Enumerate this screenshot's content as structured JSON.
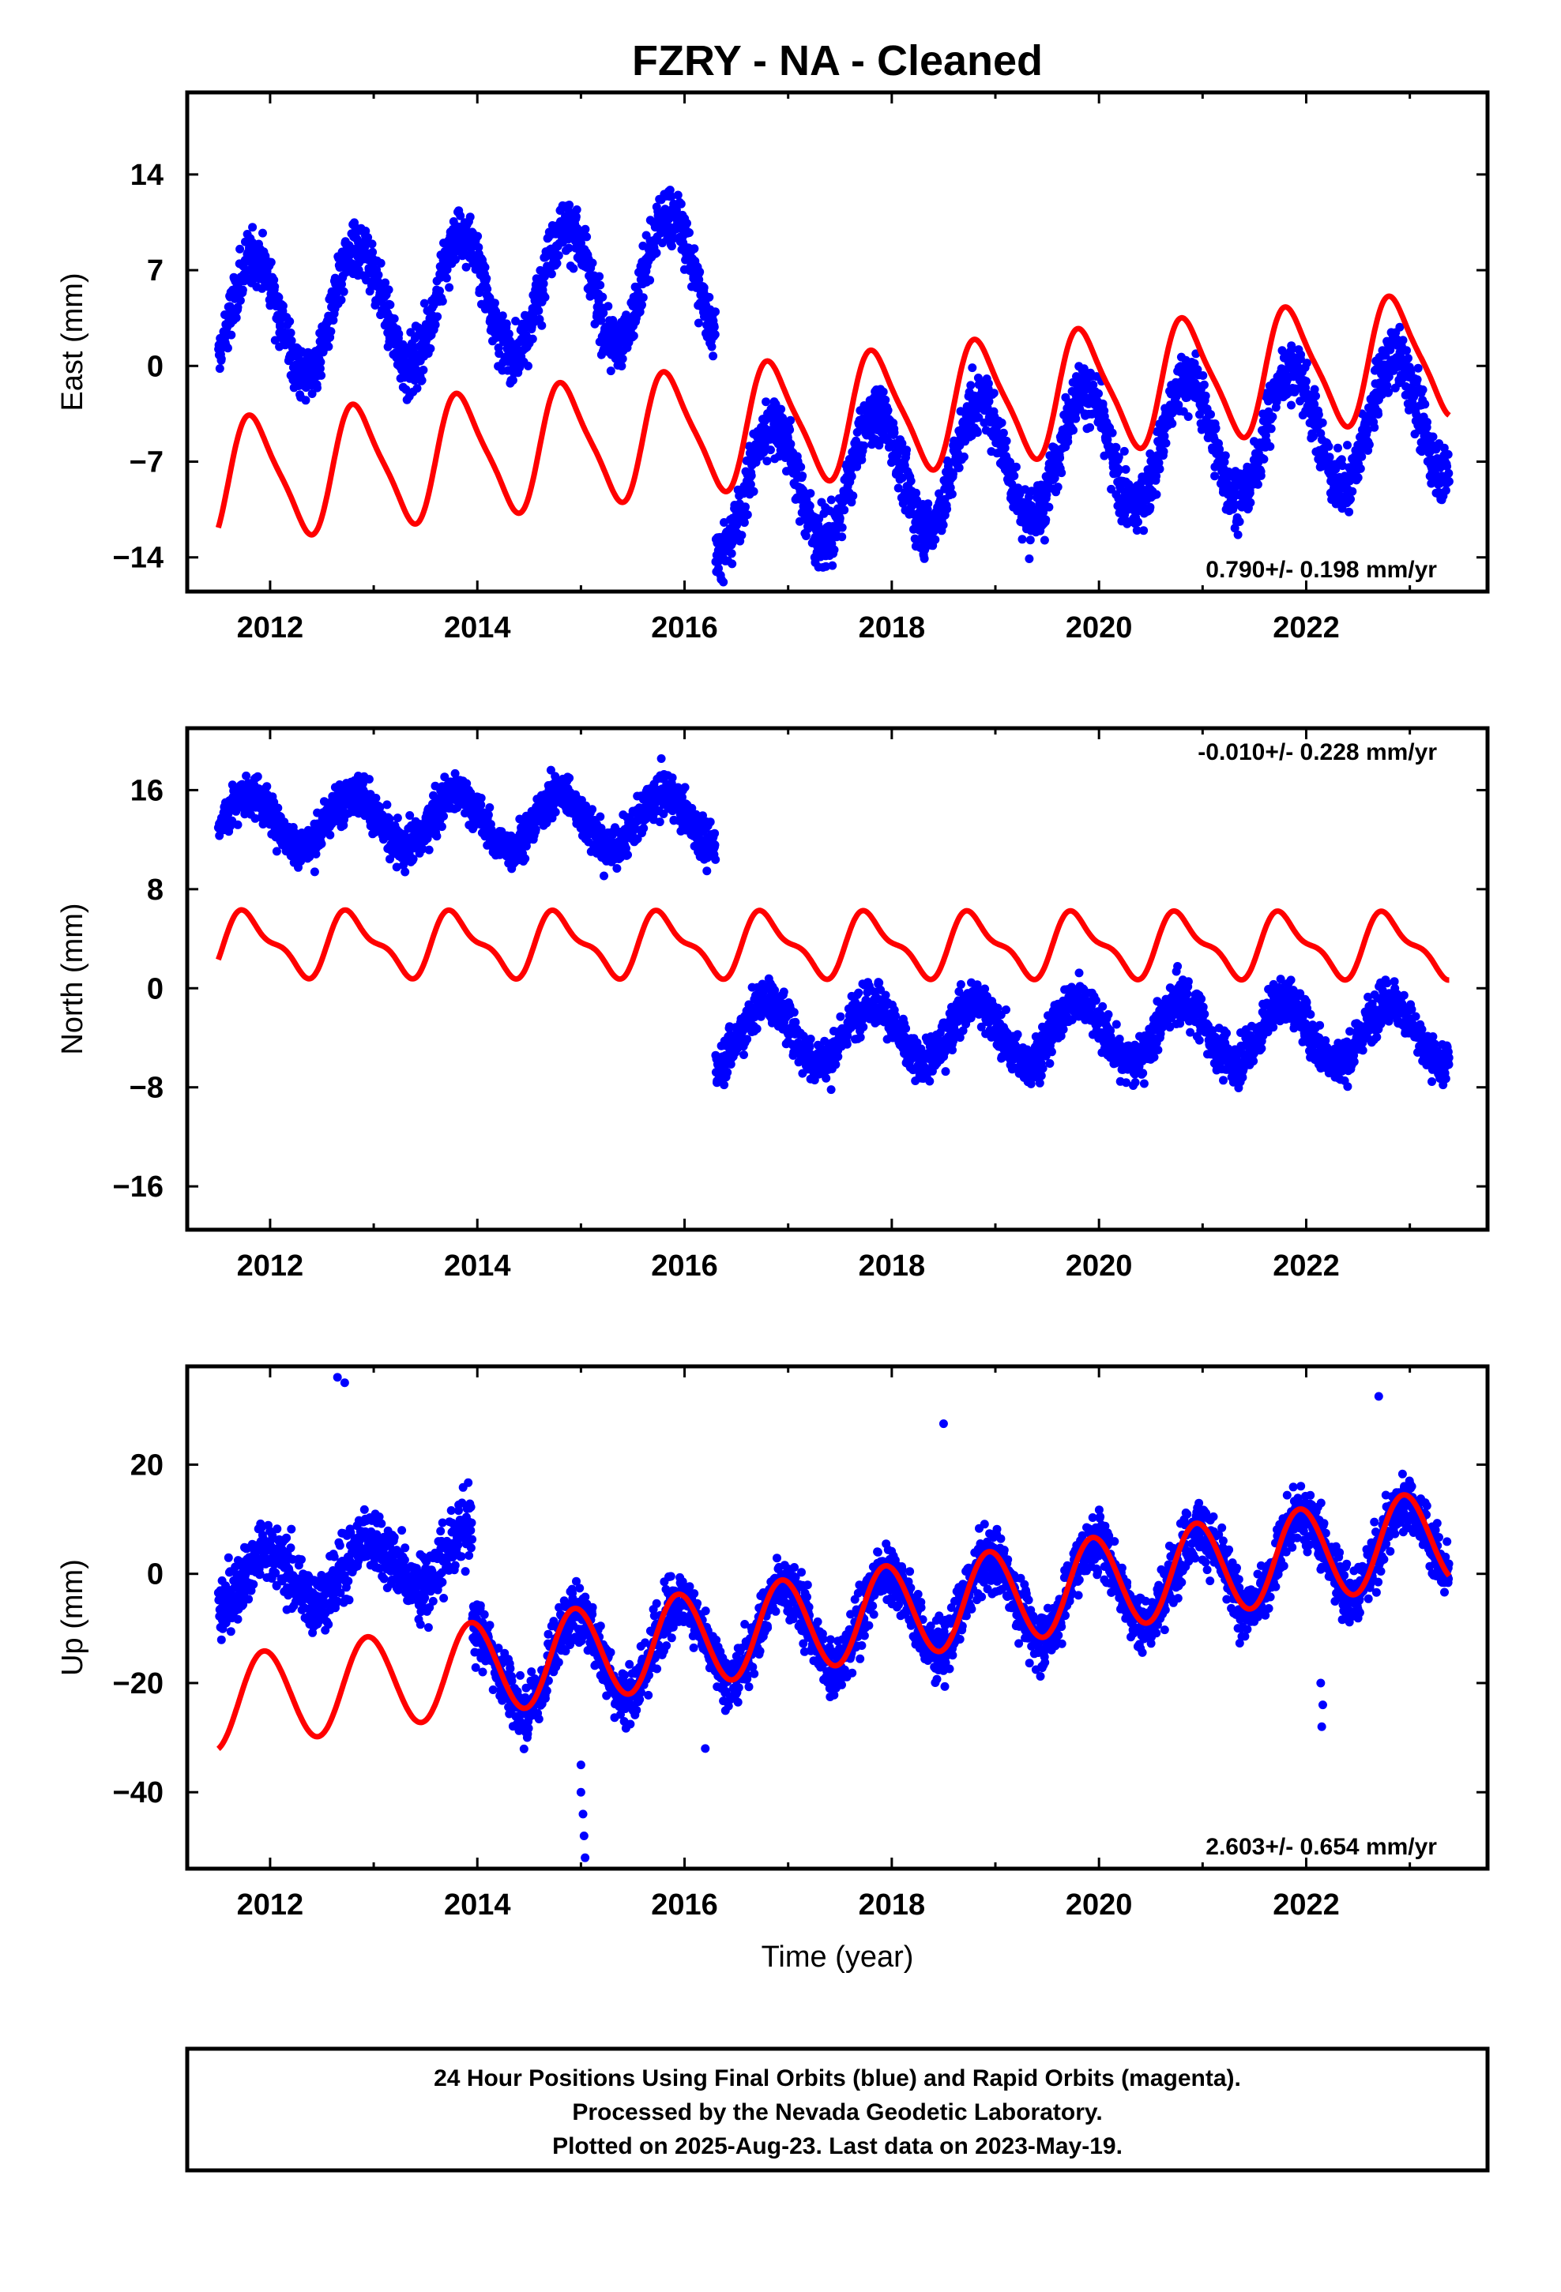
{
  "title": "FZRY  - NA - Cleaned",
  "xlabel": "Time (year)",
  "footer": {
    "line1": "24 Hour Positions Using Final Orbits (blue) and Rapid Orbits (magenta).",
    "line2": "Processed by the Nevada Geodetic Laboratory.",
    "line3": "Plotted on 2025-Aug-23. Last data on 2023-May-19."
  },
  "colors": {
    "observations": "#0000ff",
    "model": "#ff0000",
    "frame": "#000000"
  },
  "chart_data": [
    {
      "type": "scatter",
      "panel": "east",
      "ylabel": "East (mm)",
      "rate_text": "0.790+/- 0.198 mm/yr",
      "rate_position": "bottom-right",
      "xlim": [
        2011.2,
        2023.75
      ],
      "ylim": [
        -16.5,
        20
      ],
      "xticks": [
        2012,
        2014,
        2016,
        2018,
        2020,
        2022
      ],
      "yticks": [
        -14,
        -7,
        0,
        7,
        14
      ],
      "ytick_labels": [
        "−14",
        "−7",
        "0",
        "7",
        "14"
      ],
      "data_start": 2011.5,
      "data_end": 2023.38,
      "series": [
        {
          "name": "observations",
          "segments": [
            {
              "from": 2011.5,
              "to": 2016.3,
              "offset": 7.5,
              "amplitude": 4.5,
              "phase_year": 0.6,
              "trend": 0.79,
              "noise": 1.6
            },
            {
              "from": 2016.3,
              "to": 2023.38,
              "offset": -8.5,
              "amplitude": 4.5,
              "phase_year": 0.6,
              "trend": 0.79,
              "noise": 1.6
            }
          ]
        },
        {
          "name": "model",
          "segments": [
            {
              "from": 2011.5,
              "to": 2023.38,
              "offset": -4.1,
              "amplitude": 4.3,
              "phase_year": 0.6,
              "trend": 0.79,
              "harmonic2": 0.9
            }
          ]
        }
      ]
    },
    {
      "type": "scatter",
      "panel": "north",
      "ylabel": "North (mm)",
      "rate_text": "-0.010+/- 0.228 mm/yr",
      "rate_position": "top-right",
      "xlim": [
        2011.2,
        2023.75
      ],
      "ylim": [
        -19.5,
        21
      ],
      "xticks": [
        2012,
        2014,
        2016,
        2018,
        2020,
        2022
      ],
      "yticks": [
        -16,
        -8,
        0,
        8,
        16
      ],
      "ytick_labels": [
        "−16",
        "−8",
        "0",
        "8",
        "16"
      ],
      "data_start": 2011.5,
      "data_end": 2023.38,
      "series": [
        {
          "name": "observations",
          "segments": [
            {
              "from": 2011.5,
              "to": 2016.3,
              "offset": 13.5,
              "amplitude": 2.2,
              "phase_year": 0.55,
              "trend": -0.01,
              "noise": 1.3
            },
            {
              "from": 2016.3,
              "to": 2023.38,
              "offset": -3.5,
              "amplitude": 2.5,
              "phase_year": 0.55,
              "trend": -0.01,
              "noise": 1.4
            }
          ]
        },
        {
          "name": "model",
          "segments": [
            {
              "from": 2011.5,
              "to": 2023.38,
              "offset": 3.5,
              "amplitude": 2.3,
              "phase_year": 0.55,
              "trend": -0.01,
              "harmonic2": 0.9
            }
          ]
        }
      ]
    },
    {
      "type": "scatter",
      "panel": "up",
      "ylabel": "Up (mm)",
      "rate_text": "2.603+/- 0.654 mm/yr",
      "rate_position": "bottom-right",
      "xlim": [
        2011.2,
        2023.75
      ],
      "ylim": [
        -54,
        38
      ],
      "xticks": [
        2012,
        2014,
        2016,
        2018,
        2020,
        2022
      ],
      "yticks": [
        -40,
        -20,
        0,
        20
      ],
      "ytick_labels": [
        "−40",
        "−20",
        "0",
        "20"
      ],
      "data_start": 2011.5,
      "data_end": 2023.38,
      "series": [
        {
          "name": "observations",
          "segments": [
            {
              "from": 2011.5,
              "to": 2013.95,
              "offset": 12,
              "amplitude": 5,
              "phase_year": 0.7,
              "trend": 2.6,
              "noise": 4.5
            },
            {
              "from": 2013.95,
              "to": 2023.38,
              "offset": -10,
              "amplitude": 8,
              "phase_year": 0.7,
              "trend": 2.6,
              "noise": 4.2
            }
          ]
        },
        {
          "name": "model",
          "segments": [
            {
              "from": 2011.5,
              "to": 2023.38,
              "offset": -9.5,
              "amplitude": 8.5,
              "phase_year": 0.7,
              "trend": 2.6,
              "harmonic2": 0.3
            }
          ]
        }
      ],
      "outliers": [
        {
          "x": 2015.0,
          "y": -35
        },
        {
          "x": 2015.0,
          "y": -40
        },
        {
          "x": 2015.02,
          "y": -44
        },
        {
          "x": 2015.03,
          "y": -48
        },
        {
          "x": 2015.04,
          "y": -52
        },
        {
          "x": 2012.65,
          "y": 36
        },
        {
          "x": 2012.72,
          "y": 35
        },
        {
          "x": 2018.5,
          "y": 27.5
        },
        {
          "x": 2022.7,
          "y": 32.5
        },
        {
          "x": 2022.15,
          "y": -28
        },
        {
          "x": 2022.16,
          "y": -24
        },
        {
          "x": 2022.14,
          "y": -20
        },
        {
          "x": 2016.2,
          "y": -32
        }
      ]
    }
  ]
}
